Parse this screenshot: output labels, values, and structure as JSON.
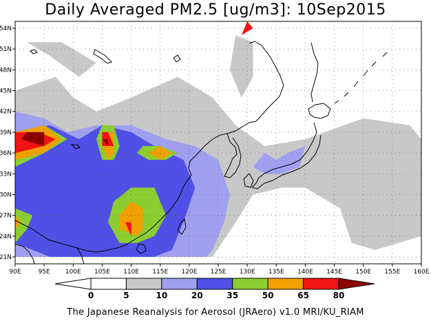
{
  "title": "Daily Averaged PM2.5 [ug/m3]: 10Sep2015",
  "footer": "The Japanese Reanalysis for Aerosol (JRAero) v1.0 MRI/KU_RIAM",
  "axes": {
    "lon_labels": [
      "90E",
      "95E",
      "100E",
      "105E",
      "110E",
      "115E",
      "120E",
      "125E",
      "130E",
      "135E",
      "140E",
      "145E",
      "150E",
      "155E",
      "160E"
    ],
    "lat_labels": [
      "54N",
      "51N",
      "48N",
      "45N",
      "42N",
      "39N",
      "36N",
      "33N",
      "30N",
      "27N",
      "24N",
      "21N"
    ],
    "lon_range": [
      90,
      160
    ],
    "lat_range": [
      20,
      55
    ]
  },
  "colorbar": {
    "tick_labels": [
      "0",
      "5",
      "10",
      "20",
      "35",
      "50",
      "65",
      "80"
    ],
    "levels": [
      0,
      5,
      10,
      20,
      35,
      50,
      65,
      80
    ],
    "colors": [
      "#ffffff",
      "#c8c8c8",
      "#a0a0f0",
      "#5050e6",
      "#8ccd32",
      "#f0a000",
      "#f01414",
      "#8c0000"
    ]
  },
  "chart_data": {
    "type": "heatmap",
    "title": "Daily Averaged PM2.5 [ug/m3]: 10Sep2015",
    "variable": "PM2.5 [ug/m3]",
    "date": "10Sep2015",
    "x_range": [
      90,
      160
    ],
    "y_range": [
      20,
      55
    ],
    "levels": [
      0,
      5,
      10,
      20,
      35,
      50,
      65,
      80
    ],
    "regions": [
      {
        "name": "gray-haze",
        "class": "5-10",
        "lon_lat": [
          [
            90,
            21
          ],
          [
            90,
            45
          ],
          [
            97,
            47
          ],
          [
            100,
            44
          ],
          [
            104,
            42
          ],
          [
            110,
            44
          ],
          [
            118,
            47
          ],
          [
            124,
            44
          ],
          [
            128,
            40
          ],
          [
            133,
            37
          ],
          [
            140,
            38
          ],
          [
            150,
            41
          ],
          [
            158,
            40
          ],
          [
            160,
            38
          ],
          [
            160,
            24
          ],
          [
            152,
            22
          ],
          [
            148,
            23
          ],
          [
            146,
            28
          ],
          [
            140,
            31
          ],
          [
            136,
            31
          ],
          [
            131,
            30
          ],
          [
            128,
            26
          ],
          [
            124,
            21
          ]
        ]
      },
      {
        "name": "gray-north-band",
        "class": "5-10",
        "lon_lat": [
          [
            92,
            52
          ],
          [
            96,
            50
          ],
          [
            101,
            47
          ],
          [
            104,
            49
          ],
          [
            98,
            52
          ]
        ]
      },
      {
        "name": "gray-north-lobe",
        "class": "5-10",
        "lon_lat": [
          [
            127,
            48
          ],
          [
            129,
            44
          ],
          [
            131,
            47
          ],
          [
            131,
            52
          ],
          [
            128,
            53
          ]
        ]
      },
      {
        "name": "light-blue-area",
        "class": "10-20",
        "lon_lat": [
          [
            90,
            21
          ],
          [
            90,
            42
          ],
          [
            95,
            41
          ],
          [
            99,
            39
          ],
          [
            104,
            40
          ],
          [
            110,
            40
          ],
          [
            116,
            38
          ],
          [
            121,
            37
          ],
          [
            125,
            35
          ],
          [
            127,
            30
          ],
          [
            126,
            26
          ],
          [
            124,
            22
          ],
          [
            123,
            21
          ]
        ]
      },
      {
        "name": "light-blue-japan",
        "class": "10-20",
        "lon_lat": [
          [
            131,
            34
          ],
          [
            133,
            36
          ],
          [
            135,
            35
          ],
          [
            137,
            36
          ],
          [
            140,
            37
          ],
          [
            139,
            34
          ],
          [
            136,
            33
          ],
          [
            133,
            33
          ]
        ]
      },
      {
        "name": "blue-area",
        "class": "20-35",
        "lon_lat": [
          [
            90,
            23
          ],
          [
            90,
            39
          ],
          [
            96,
            40
          ],
          [
            101,
            38
          ],
          [
            105,
            40
          ],
          [
            110,
            39
          ],
          [
            114,
            37
          ],
          [
            119,
            35
          ],
          [
            121,
            31
          ],
          [
            119,
            26
          ],
          [
            117,
            22
          ],
          [
            114,
            21
          ],
          [
            96,
            21
          ]
        ]
      },
      {
        "name": "green-west",
        "class": "35-50",
        "lon_lat": [
          [
            90,
            34
          ],
          [
            90,
            39
          ],
          [
            95,
            40
          ],
          [
            99,
            38
          ],
          [
            95,
            36
          ]
        ]
      },
      {
        "name": "green-sichuan",
        "class": "35-50",
        "lon_lat": [
          [
            104,
            38
          ],
          [
            105,
            40
          ],
          [
            107,
            40
          ],
          [
            108,
            37
          ],
          [
            107,
            35
          ],
          [
            105,
            35
          ]
        ]
      },
      {
        "name": "green-south",
        "class": "35-50",
        "lon_lat": [
          [
            107,
            29
          ],
          [
            106,
            26
          ],
          [
            108,
            23
          ],
          [
            111,
            23
          ],
          [
            114,
            24
          ],
          [
            116,
            27
          ],
          [
            114,
            31
          ],
          [
            110,
            31
          ]
        ]
      },
      {
        "name": "green-north-china",
        "class": "35-50",
        "lon_lat": [
          [
            111,
            36
          ],
          [
            112,
            37
          ],
          [
            115,
            37
          ],
          [
            118,
            36
          ],
          [
            116,
            35
          ],
          [
            113,
            35
          ]
        ]
      },
      {
        "name": "green-west-south",
        "class": "35-50",
        "lon_lat": [
          [
            90,
            23
          ],
          [
            90,
            28
          ],
          [
            93,
            27
          ],
          [
            92,
            25
          ]
        ]
      },
      {
        "name": "orange-west",
        "class": "50-65",
        "lon_lat": [
          [
            90,
            35
          ],
          [
            90,
            39
          ],
          [
            95,
            40
          ],
          [
            98,
            38
          ],
          [
            95,
            36
          ]
        ]
      },
      {
        "name": "orange-sichuan",
        "class": "50-65",
        "lon_lat": [
          [
            105,
            37
          ],
          [
            105,
            39
          ],
          [
            107,
            39
          ],
          [
            107,
            36
          ],
          [
            106,
            35
          ]
        ]
      },
      {
        "name": "orange-south",
        "class": "50-65",
        "lon_lat": [
          [
            108,
            27
          ],
          [
            108,
            25
          ],
          [
            111,
            24
          ],
          [
            112,
            25
          ],
          [
            112,
            28
          ],
          [
            110,
            29
          ]
        ]
      },
      {
        "name": "orange-north-china",
        "class": "50-65",
        "lon_lat": [
          [
            113,
            36
          ],
          [
            115,
            37
          ],
          [
            117,
            36
          ],
          [
            115,
            35
          ]
        ]
      },
      {
        "name": "orange-west-south",
        "class": "50-65",
        "lon_lat": [
          [
            90,
            25
          ],
          [
            90,
            27
          ],
          [
            91,
            26
          ]
        ]
      },
      {
        "name": "red-west",
        "class": "65-80",
        "lon_lat": [
          [
            90,
            36
          ],
          [
            90,
            39
          ],
          [
            94,
            39
          ],
          [
            97,
            38
          ],
          [
            95,
            37
          ]
        ]
      },
      {
        "name": "red-sichuan",
        "class": "65-80",
        "lon_lat": [
          [
            105,
            37
          ],
          [
            105,
            39
          ],
          [
            106,
            39
          ],
          [
            107,
            37
          ]
        ]
      },
      {
        "name": "red-south",
        "class": "65-80",
        "lon_lat": [
          [
            109,
            26
          ],
          [
            110,
            24
          ],
          [
            110,
            26
          ]
        ]
      },
      {
        "name": "red-north-china",
        "class": "65-80",
        "lon_lat": [
          [
            114,
            36
          ],
          [
            115,
            36
          ],
          [
            116,
            36
          ]
        ]
      },
      {
        "name": "red-north",
        "class": "65-80",
        "lon_lat": [
          [
            129,
            53
          ],
          [
            130,
            55
          ],
          [
            131,
            54
          ]
        ]
      },
      {
        "name": "darkred-west",
        "class": ">80",
        "lon_lat": [
          [
            91,
            38
          ],
          [
            92,
            39
          ],
          [
            95,
            39
          ],
          [
            95,
            37
          ]
        ]
      },
      {
        "name": "darkred-sichuan",
        "class": ">80",
        "lon_lat": [
          [
            105,
            38
          ],
          [
            106,
            38
          ],
          [
            106,
            37
          ]
        ]
      }
    ]
  }
}
